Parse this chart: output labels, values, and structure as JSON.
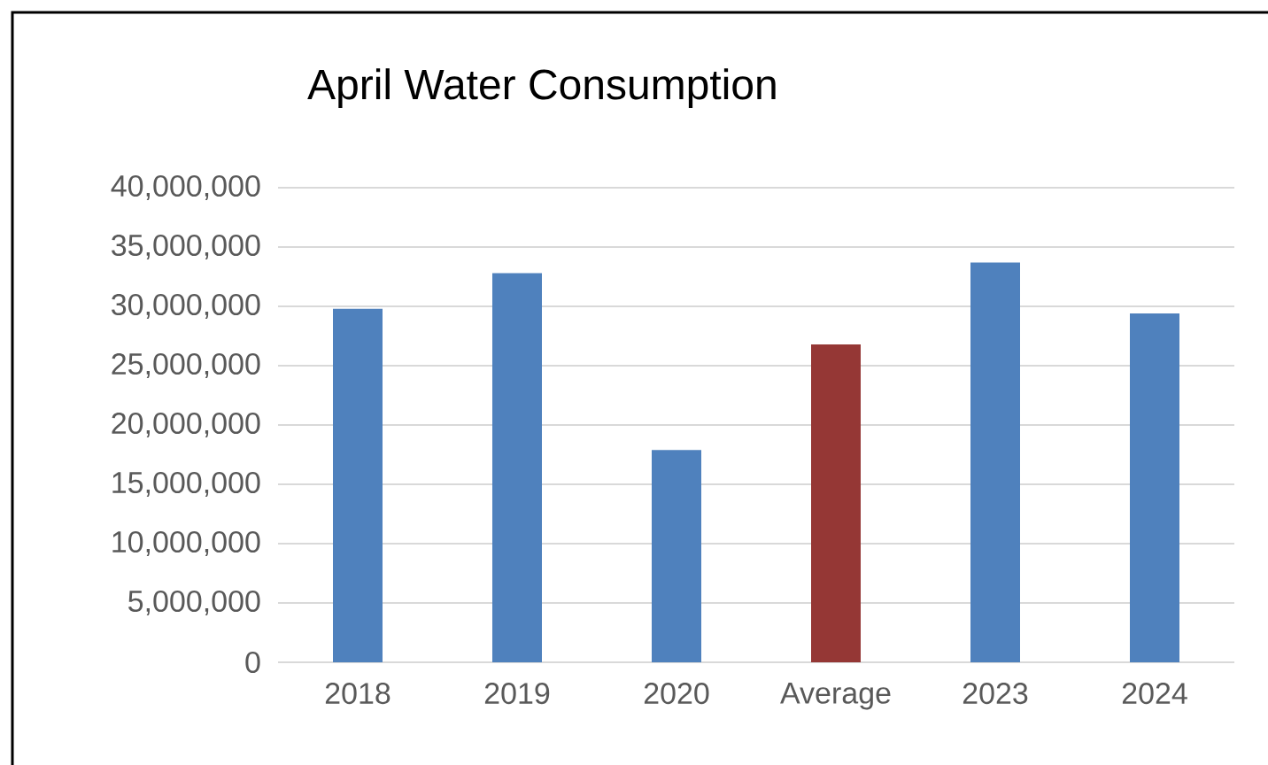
{
  "chart_data": {
    "type": "bar",
    "title": "April Water Consumption",
    "categories": [
      "2018",
      "2019",
      "2020",
      "Average",
      "2023",
      "2024"
    ],
    "values": [
      29800000,
      32800000,
      17900000,
      26800000,
      33700000,
      29400000
    ],
    "colors": [
      "#4f81bd",
      "#4f81bd",
      "#4f81bd",
      "#953735",
      "#4f81bd",
      "#4f81bd"
    ],
    "ylim": [
      0,
      40000000
    ],
    "yticks": [
      {
        "value": 0,
        "label": "0"
      },
      {
        "value": 5000000,
        "label": "5,000,000"
      },
      {
        "value": 10000000,
        "label": "10,000,000"
      },
      {
        "value": 15000000,
        "label": "15,000,000"
      },
      {
        "value": 20000000,
        "label": "20,000,000"
      },
      {
        "value": 25000000,
        "label": "25,000,000"
      },
      {
        "value": 30000000,
        "label": "30,000,000"
      },
      {
        "value": 35000000,
        "label": "35,000,000"
      },
      {
        "value": 40000000,
        "label": "40,000,000"
      }
    ],
    "grid": "y"
  }
}
